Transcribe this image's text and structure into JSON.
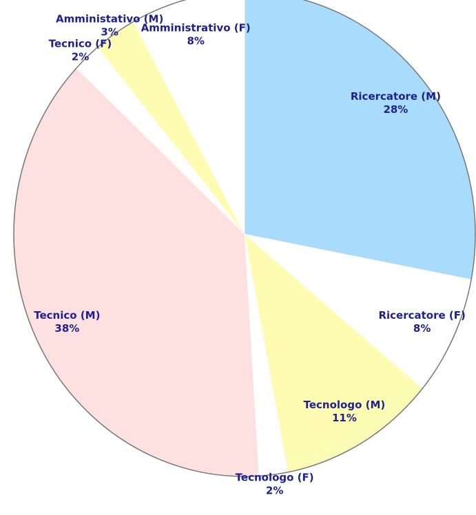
{
  "chart_data": {
    "type": "pie",
    "categories": [
      "Ricercatore (M)",
      "Ricercatore (F)",
      "Tecnologo (M)",
      "Tecnologo (F)",
      "Tecnico (M)",
      "Tecnico (F)",
      "Amministativo (M)",
      "Amministrativo (F)"
    ],
    "values": [
      28,
      8,
      11,
      2,
      38,
      2,
      3,
      8
    ],
    "value_labels": [
      "28%",
      "8%",
      "11%",
      "2%",
      "38%",
      "2%",
      "3%",
      "8%"
    ],
    "colors": [
      "#a9dcfb",
      "#ffffff",
      "#fdfcb2",
      "#ffffff",
      "#fde0e0",
      "#ffffff",
      "#fdfcb2",
      "#ffffff"
    ]
  }
}
